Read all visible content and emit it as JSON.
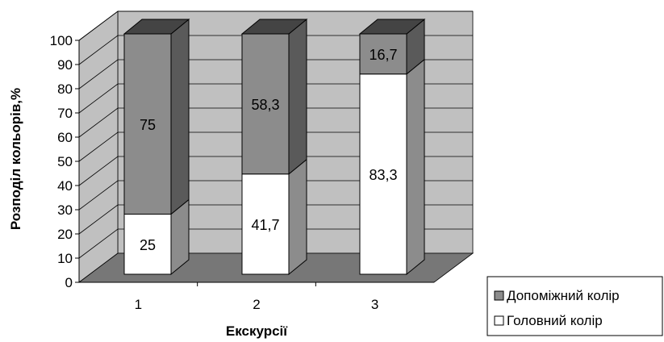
{
  "colors": {
    "wall": "#c0c0c0",
    "floor": "#777777",
    "primary_front": "#ffffff",
    "primary_side": "#8c8c8c",
    "secondary_front": "#8c8c8c",
    "secondary_side": "#5a5a5a",
    "secondary_top": "#444444"
  },
  "chart_data": {
    "type": "bar",
    "stacked": true,
    "three_d": true,
    "categories": [
      "1",
      "2",
      "3"
    ],
    "series": [
      {
        "name": "Головний колір",
        "values": [
          25,
          41.7,
          83.3
        ],
        "labels": [
          "25",
          "41,7",
          "83,3"
        ]
      },
      {
        "name": "Допоміжний колір",
        "values": [
          75,
          58.3,
          16.7
        ],
        "labels": [
          "75",
          "58,3",
          "16,7"
        ]
      }
    ],
    "xlabel": "Екскурсії",
    "ylabel": "Розподіл кольорів,%",
    "ylim": [
      0,
      100
    ],
    "yticks": [
      "0",
      "10",
      "20",
      "30",
      "40",
      "50",
      "60",
      "70",
      "80",
      "90",
      "100"
    ],
    "grid": true,
    "legend": {
      "position": "bottom-right",
      "entries": [
        "Допоміжний колір",
        "Головний колір"
      ]
    }
  }
}
